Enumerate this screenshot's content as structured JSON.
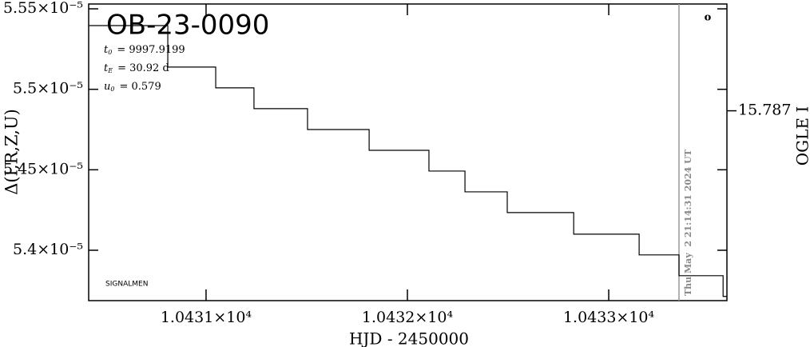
{
  "chart_data": {
    "type": "line",
    "title": "OB-23-0090",
    "parameters": [
      {
        "symbol": "t",
        "sub": "0",
        "text": "= 9997.9199"
      },
      {
        "symbol": "t",
        "sub": "E",
        "text": "= 30.92 d"
      },
      {
        "symbol": "u",
        "sub": "0",
        "text": "= 0.579"
      }
    ],
    "y_label": "Δ(I,R,Z,U)",
    "y2_label": "OGLE I",
    "x_label": "HJD - 2450000",
    "footer_note": "SIGNALMEN",
    "timestamp": "Thu May  2 21:14:31 2024 UT",
    "corner_mark": "o",
    "color": "#000000",
    "x": [
      10430.42,
      10430.81,
      10430.81,
      10431.048,
      10431.048,
      10431.238,
      10431.238,
      10431.504,
      10431.504,
      10431.81,
      10431.81,
      10432.107,
      10432.107,
      10432.286,
      10432.286,
      10432.496,
      10432.496,
      10432.826,
      10432.826,
      10433.151,
      10433.151,
      10433.349,
      10433.349,
      10433.568,
      10433.568,
      10433.585
    ],
    "values": [
      5.5396e-05,
      5.5396e-05,
      5.5138e-05,
      5.5138e-05,
      5.5009e-05,
      5.5009e-05,
      5.488e-05,
      5.488e-05,
      5.475e-05,
      5.475e-05,
      5.4621e-05,
      5.4621e-05,
      5.4492e-05,
      5.4492e-05,
      5.4363e-05,
      5.4363e-05,
      5.4234e-05,
      5.4234e-05,
      5.41e-05,
      5.41e-05,
      5.3971e-05,
      5.3971e-05,
      5.3842e-05,
      5.3842e-05,
      5.3713e-05,
      5.3713e-05
    ],
    "xlim": [
      10430.417,
      10433.587
    ],
    "xticks": [
      {
        "value": 10431,
        "label": "1.0431×10⁴"
      },
      {
        "value": 10432,
        "label": "1.0432×10⁴"
      },
      {
        "value": 10433,
        "label": "1.0433×10⁴"
      }
    ],
    "ylim": [
      5.3687e-05,
      5.553e-05
    ],
    "yticks": [
      {
        "value": 5.4e-05,
        "label": "5.4×10⁻⁵"
      },
      {
        "value": 5.45e-05,
        "label": "5.45×10⁻⁵"
      },
      {
        "value": 5.5e-05,
        "label": "5.5×10⁻⁵"
      },
      {
        "value": 5.55e-05,
        "label": "5.55×10⁻⁵"
      }
    ],
    "y2lim": [
      15.7934,
      15.7834
    ],
    "y2ticks": [
      15.787
    ]
  }
}
